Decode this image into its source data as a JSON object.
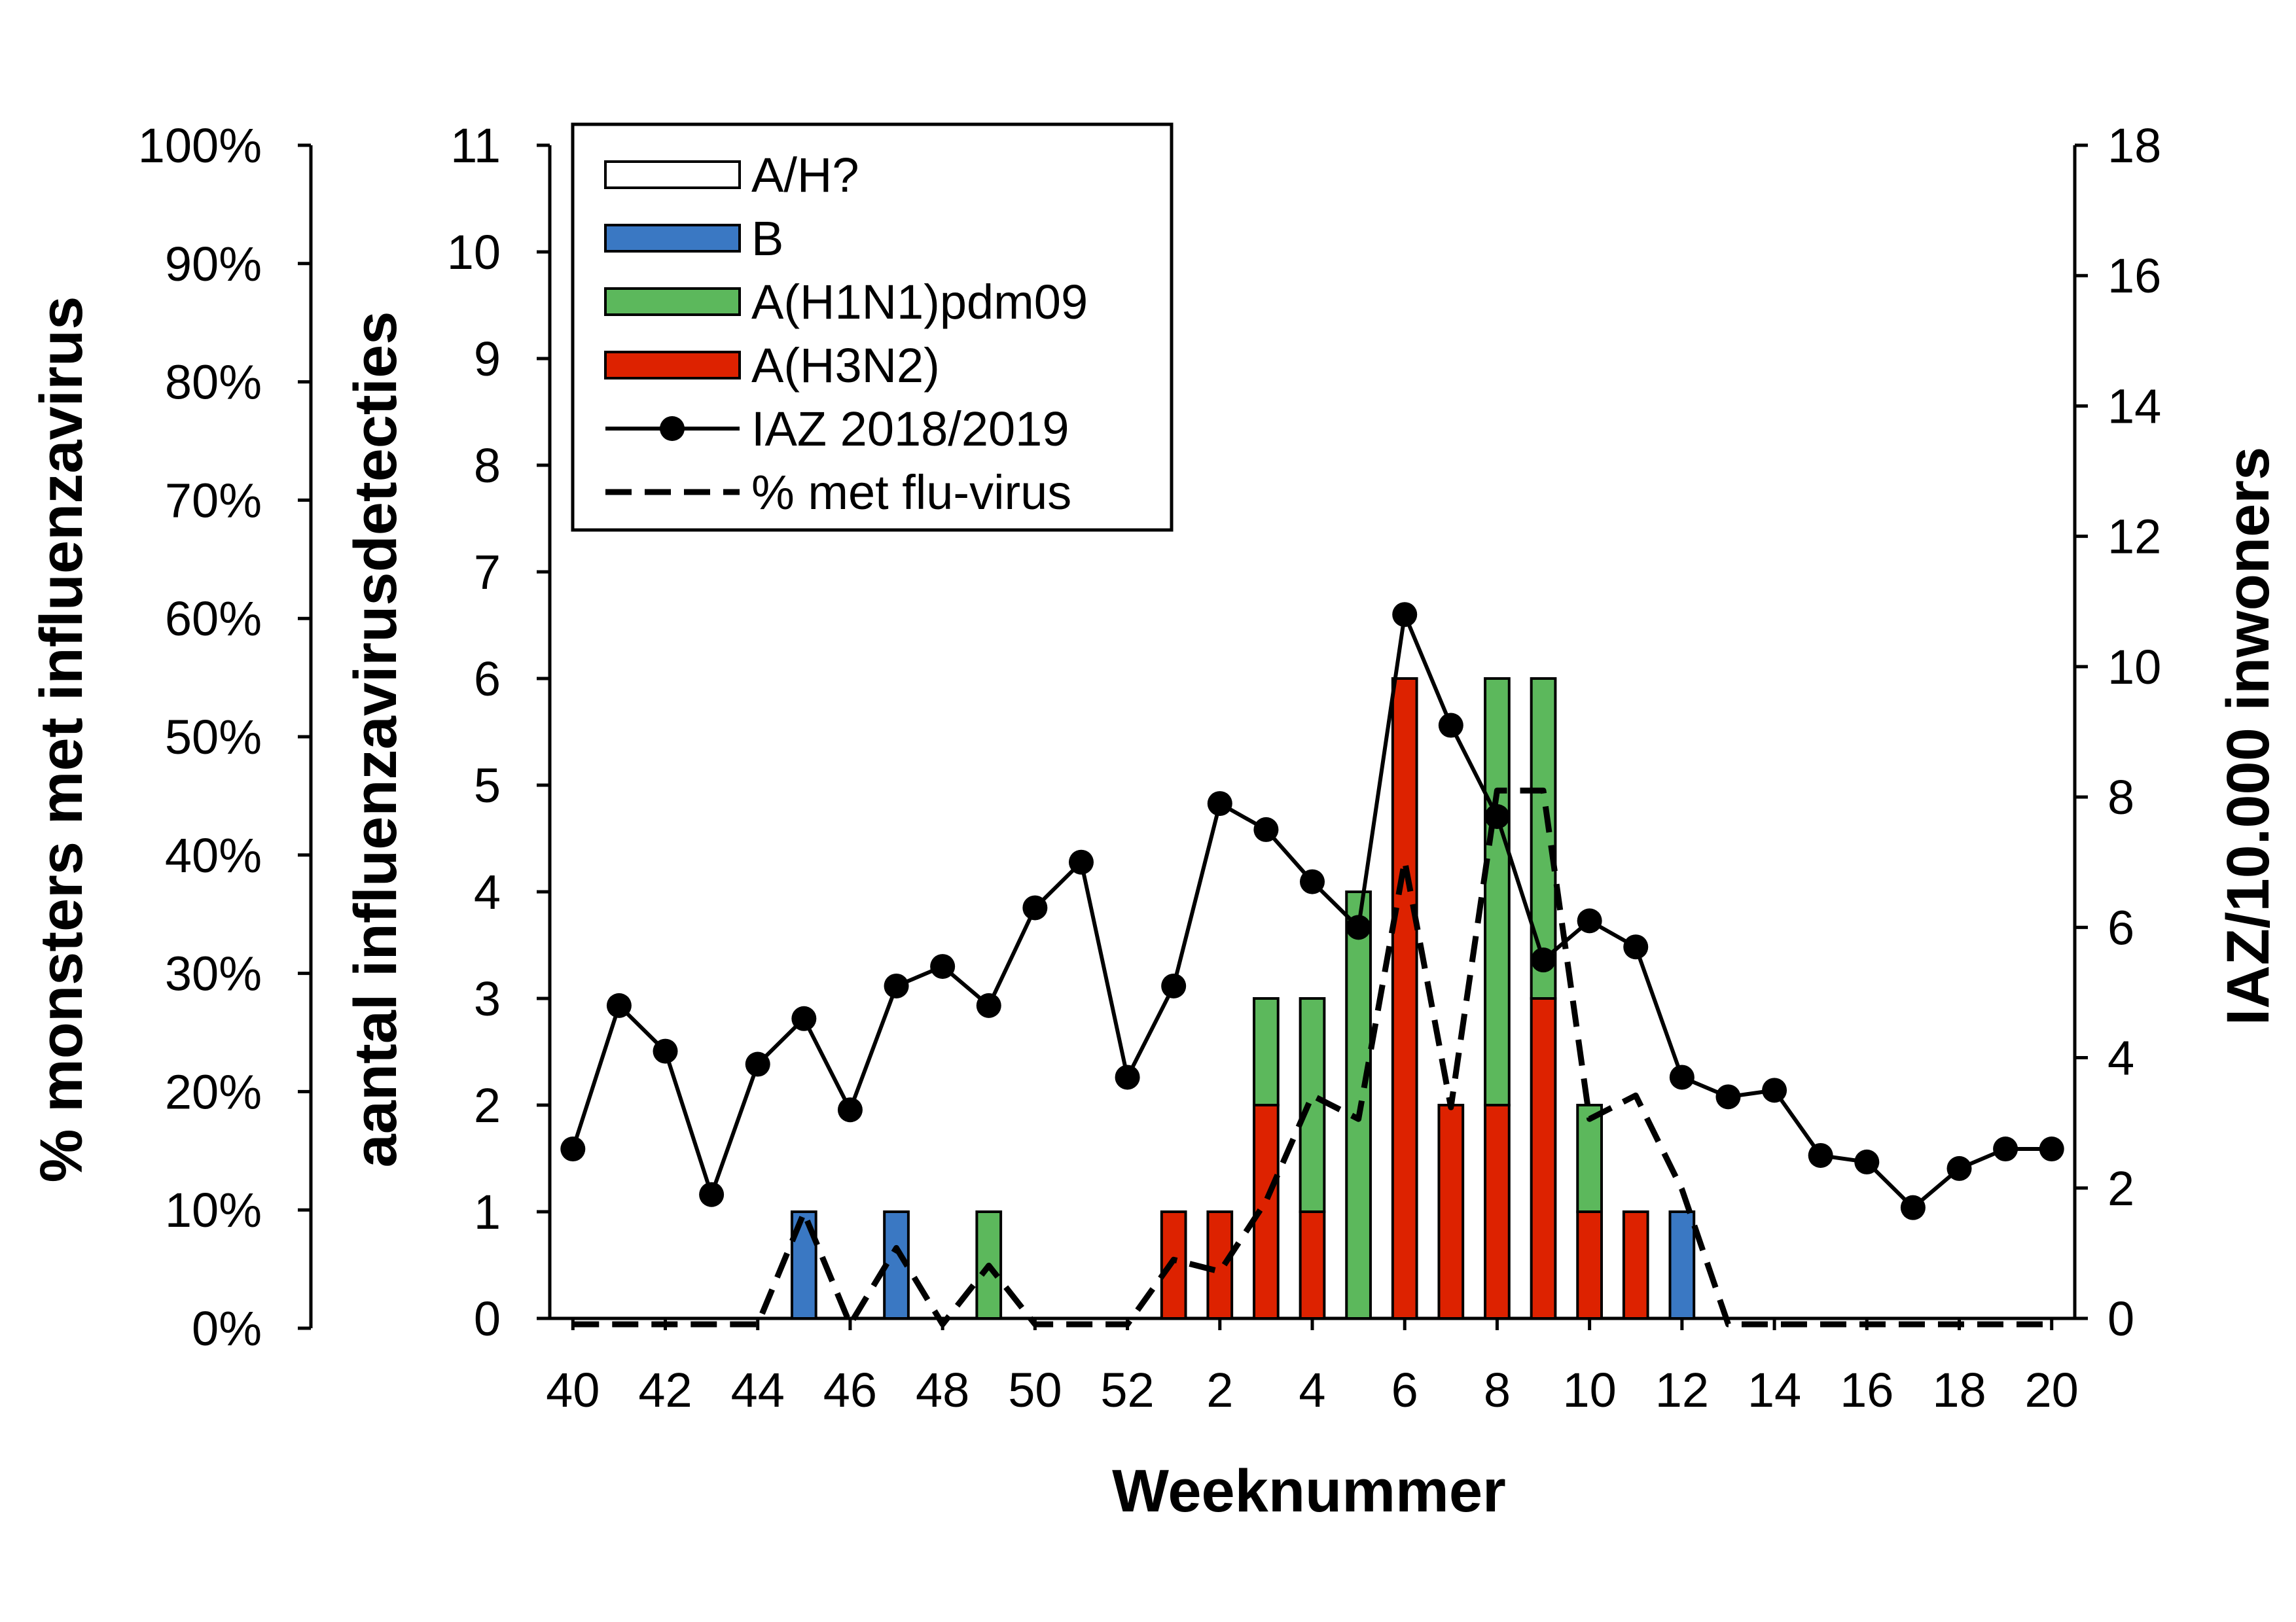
{
  "chart_data": {
    "type": "bar",
    "stacked": true,
    "xlabel": "Weeknummer",
    "weeks": [
      40,
      41,
      42,
      43,
      44,
      45,
      46,
      47,
      48,
      49,
      50,
      51,
      52,
      1,
      2,
      3,
      4,
      5,
      6,
      7,
      8,
      9,
      10,
      11,
      12,
      13,
      14,
      15,
      16,
      17,
      18,
      19,
      20
    ],
    "x_tick_labels": [
      "40",
      "42",
      "44",
      "46",
      "48",
      "50",
      "52",
      "2",
      "4",
      "6",
      "8",
      "10",
      "12",
      "14",
      "16",
      "18",
      "20"
    ],
    "axes": {
      "left_outer": {
        "label": "% monsters met influenzavirus",
        "ylim": [
          0,
          100
        ],
        "ticks": [
          "0%",
          "10%",
          "20%",
          "30%",
          "40%",
          "50%",
          "60%",
          "70%",
          "80%",
          "90%",
          "100%"
        ]
      },
      "left_inner": {
        "label": "aantal influenzavirusdetecties",
        "ylim": [
          0,
          11
        ],
        "ticks": [
          "0",
          "1",
          "2",
          "3",
          "4",
          "5",
          "6",
          "7",
          "8",
          "9",
          "10",
          "11"
        ]
      },
      "right": {
        "label": "IAZ/10.000 inwoners",
        "ylim": [
          0,
          18
        ],
        "ticks": [
          "0",
          "2",
          "4",
          "6",
          "8",
          "10",
          "12",
          "14",
          "16",
          "18"
        ]
      }
    },
    "bar_series": [
      {
        "name": "A(H3N2)",
        "color": "#dd2200",
        "values": [
          0,
          0,
          0,
          0,
          0,
          0,
          0,
          0,
          0,
          0,
          0,
          0,
          0,
          1,
          1,
          2,
          1,
          0,
          6,
          2,
          2,
          3,
          1,
          1,
          0,
          0,
          0,
          0,
          0,
          0,
          0,
          0,
          0
        ]
      },
      {
        "name": "A(H1N1)pdm09",
        "color": "#5cb85c",
        "values": [
          0,
          0,
          0,
          0,
          0,
          0,
          0,
          0,
          0,
          1,
          0,
          0,
          0,
          0,
          0,
          1,
          2,
          4,
          0,
          0,
          4,
          3,
          1,
          0,
          0,
          0,
          0,
          0,
          0,
          0,
          0,
          0,
          0
        ]
      },
      {
        "name": "B",
        "color": "#3a78c3",
        "values": [
          0,
          0,
          0,
          0,
          0,
          1,
          0,
          1,
          0,
          0,
          0,
          0,
          0,
          0,
          0,
          0,
          0,
          0,
          0,
          0,
          0,
          0,
          0,
          0,
          1,
          0,
          0,
          0,
          0,
          0,
          0,
          0,
          0
        ]
      },
      {
        "name": "A/H?",
        "color": "#ffffff",
        "values": [
          0,
          0,
          0,
          0,
          0,
          0,
          0,
          0,
          0,
          0,
          0,
          0,
          0,
          0,
          0,
          0,
          0,
          0,
          0,
          0,
          0,
          0,
          0,
          0,
          0,
          0,
          0,
          0,
          0,
          0,
          0,
          0,
          0
        ]
      }
    ],
    "line_series": [
      {
        "name": "IAZ 2018/2019",
        "axis": "right",
        "style": "solid-markers",
        "color": "#000000",
        "values": [
          2.6,
          4.8,
          4.1,
          1.9,
          3.9,
          4.6,
          3.2,
          5.1,
          5.4,
          4.8,
          6.3,
          7.0,
          3.7,
          5.1,
          7.9,
          7.5,
          6.7,
          6.0,
          10.8,
          9.1,
          7.7,
          5.5,
          6.1,
          5.7,
          3.7,
          3.4,
          3.5,
          2.5,
          2.4,
          1.7,
          2.3,
          2.6,
          2.6
        ]
      },
      {
        "name": "% met flu-virus",
        "axis": "left_outer",
        "style": "dashed",
        "color": "#000000",
        "values": [
          -0.5,
          -0.5,
          -0.5,
          -0.5,
          -0.5,
          9,
          -0.5,
          6,
          -0.5,
          4.5,
          -0.5,
          -0.5,
          -0.5,
          5,
          4,
          10,
          19,
          17,
          39,
          18,
          45,
          45,
          17,
          19,
          11,
          -0.5,
          -0.5,
          -0.5,
          -0.5,
          -0.5,
          -0.5,
          -0.5,
          -0.5
        ]
      }
    ],
    "legend": {
      "placement": "top-left",
      "entries": [
        {
          "label": "A/H?",
          "kind": "box",
          "color": "#ffffff"
        },
        {
          "label": "B",
          "kind": "box",
          "color": "#3a78c3"
        },
        {
          "label": "A(H1N1)pdm09",
          "kind": "box",
          "color": "#5cb85c"
        },
        {
          "label": "A(H3N2)",
          "kind": "box",
          "color": "#dd2200"
        },
        {
          "label": "IAZ 2018/2019",
          "kind": "line-marker"
        },
        {
          "label": "% met flu-virus",
          "kind": "dashed"
        }
      ]
    },
    "grid": false
  }
}
